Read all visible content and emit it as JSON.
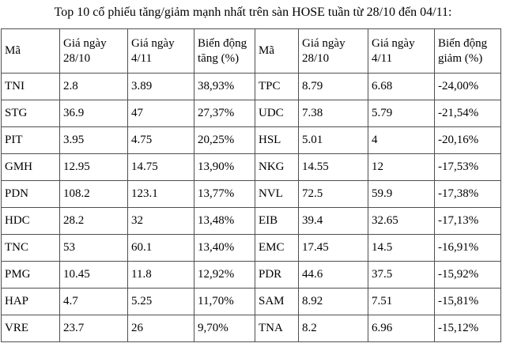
{
  "title": "Top 10 cổ phiếu tăng/giảm mạnh nhất trên sàn HOSE tuần từ 28/10 đến 04/11:",
  "table": {
    "headers": [
      "Mã",
      "Giá ngày 28/10",
      "Giá ngày 4/11",
      "Biến động tăng (%)",
      "Mã",
      "Giá ngày 28/10",
      "Giá ngày 4/11",
      "Biến động giảm (%)"
    ],
    "rows": [
      [
        "TNI",
        "2.8",
        "3.89",
        "38,93%",
        "TPC",
        "8.79",
        "6.68",
        "-24,00%"
      ],
      [
        "STG",
        "36.9",
        "47",
        "27,37%",
        "UDC",
        "7.38",
        "5.79",
        "-21,54%"
      ],
      [
        "PIT",
        "3.95",
        "4.75",
        "20,25%",
        "HSL",
        "5.01",
        "4",
        "-20,16%"
      ],
      [
        "GMH",
        "12.95",
        "14.75",
        "13,90%",
        "NKG",
        "14.55",
        "12",
        "-17,53%"
      ],
      [
        "PDN",
        "108.2",
        "123.1",
        "13,77%",
        "NVL",
        "72.5",
        "59.9",
        "-17,38%"
      ],
      [
        "HDC",
        "28.2",
        "32",
        "13,48%",
        "EIB",
        "39.4",
        "32.65",
        "-17,13%"
      ],
      [
        "TNC",
        "53",
        "60.1",
        "13,40%",
        "EMC",
        "17.45",
        "14.5",
        "-16,91%"
      ],
      [
        "PMG",
        "10.45",
        "11.8",
        "12,92%",
        "PDR",
        "44.6",
        "37.5",
        "-15,92%"
      ],
      [
        "HAP",
        "4.7",
        "5.25",
        "11,70%",
        "SAM",
        "8.92",
        "7.51",
        "-15,81%"
      ],
      [
        "VRE",
        "23.7",
        "26",
        "9,70%",
        "TNA",
        "8.2",
        "6.96",
        "-15,12%"
      ]
    ]
  }
}
